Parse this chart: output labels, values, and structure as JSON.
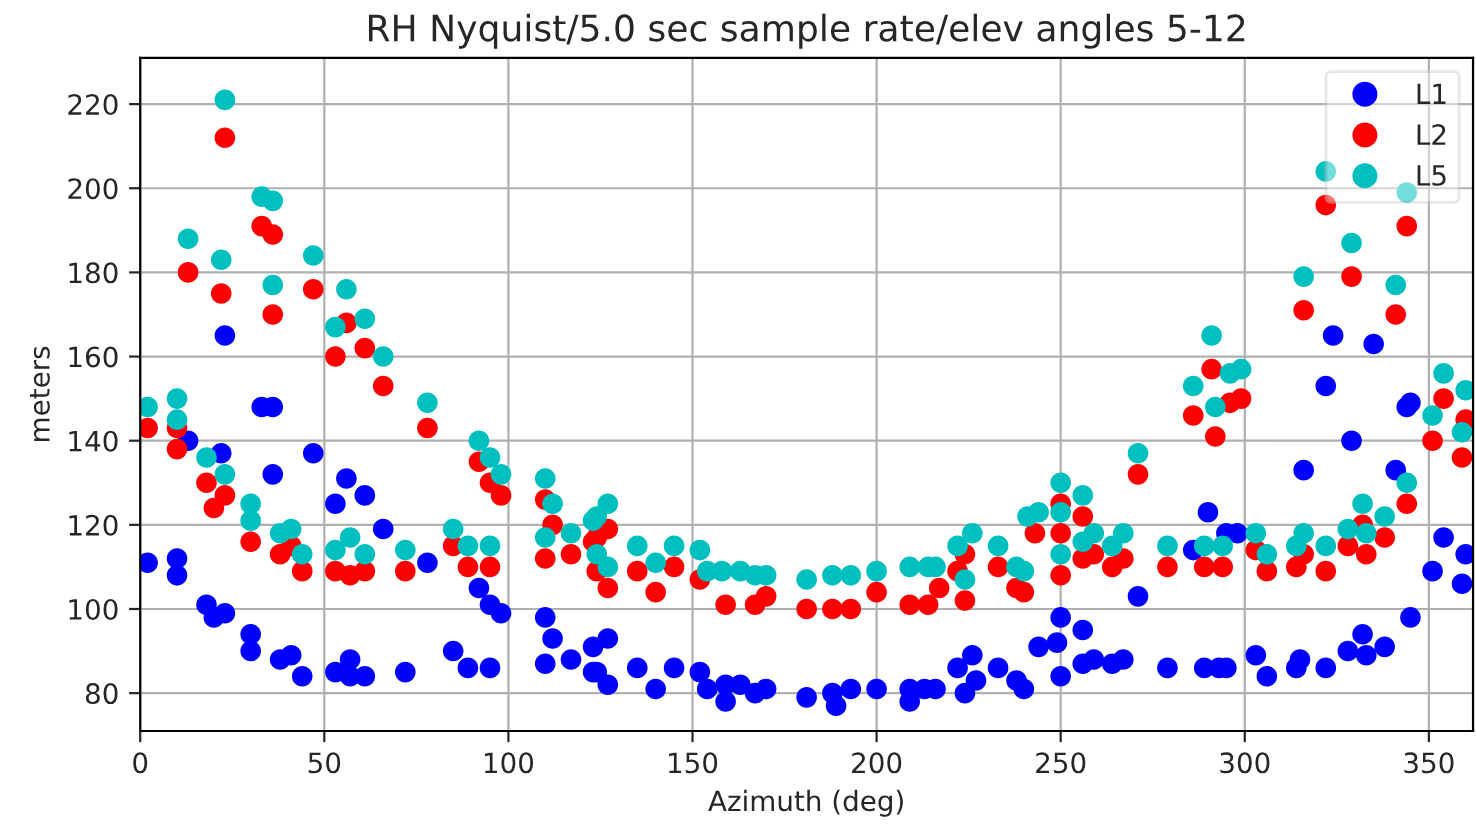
{
  "chart_data": {
    "type": "scatter",
    "title": "RH Nyquist/5.0 sec sample rate/elev angles 5-12",
    "xlabel": "Azimuth (deg)",
    "ylabel": "meters",
    "xlim": [
      0,
      362
    ],
    "ylim": [
      71,
      231
    ],
    "xticks": [
      0,
      50,
      100,
      150,
      200,
      250,
      300,
      350
    ],
    "yticks": [
      80,
      100,
      120,
      140,
      160,
      180,
      200,
      220
    ],
    "grid": true,
    "legend": "top right",
    "marker": "circle",
    "series": [
      {
        "name": "L1",
        "color": "#0000ff",
        "x": [
          2,
          10,
          10,
          13,
          18,
          20,
          22,
          23,
          23,
          30,
          30,
          33,
          36,
          36,
          38,
          41,
          44,
          47,
          53,
          53,
          56,
          57,
          57,
          61,
          61,
          66,
          72,
          78,
          85,
          89,
          92,
          95,
          95,
          98,
          110,
          112,
          110,
          117,
          123,
          123,
          127,
          124,
          127,
          135,
          140,
          145,
          152,
          154,
          159,
          159,
          163,
          167,
          170,
          181,
          188,
          189,
          193,
          200,
          209,
          209,
          213,
          216,
          222,
          226,
          224,
          227,
          233,
          238,
          240,
          244,
          250,
          249,
          250,
          256,
          256,
          259,
          264,
          267,
          271,
          279,
          286,
          290,
          295,
          298,
          289,
          293,
          295,
          303,
          306,
          316,
          315,
          314,
          322,
          324,
          322,
          329,
          328,
          332,
          333,
          338,
          335,
          341,
          344,
          345,
          345,
          354,
          351,
          359,
          360
        ],
        "values": [
          111,
          112,
          108,
          140,
          101,
          98,
          137,
          165,
          99,
          94,
          90,
          148,
          148,
          132,
          88,
          89,
          84,
          137,
          125,
          85,
          131,
          88,
          84,
          127,
          84,
          119,
          85,
          111,
          90,
          86,
          105,
          101,
          86,
          99,
          98,
          93,
          87,
          88,
          91,
          85,
          93,
          85,
          82,
          86,
          81,
          86,
          85,
          81,
          82,
          78,
          82,
          80,
          81,
          79,
          80,
          77,
          81,
          81,
          81,
          78,
          81,
          81,
          86,
          89,
          80,
          83,
          86,
          83,
          81,
          91,
          98,
          92,
          84,
          95,
          87,
          88,
          87,
          88,
          103,
          86,
          114,
          123,
          118,
          118,
          86,
          86,
          86,
          89,
          84,
          133,
          88,
          86,
          153,
          165,
          86,
          140,
          90,
          94,
          89,
          91,
          163,
          133,
          148,
          149,
          98,
          117,
          109,
          106,
          113
        ]
      },
      {
        "name": "L2",
        "color": "#ff0000",
        "x": [
          2,
          10,
          10,
          13,
          18,
          20,
          22,
          23,
          23,
          30,
          33,
          36,
          36,
          38,
          41,
          44,
          47,
          53,
          53,
          56,
          57,
          61,
          61,
          66,
          72,
          78,
          85,
          89,
          92,
          95,
          95,
          98,
          110,
          112,
          110,
          117,
          123,
          124,
          127,
          124,
          127,
          135,
          140,
          145,
          152,
          159,
          167,
          170,
          181,
          188,
          193,
          200,
          209,
          214,
          217,
          222,
          224,
          224,
          233,
          238,
          243,
          240,
          250,
          250,
          250,
          256,
          256,
          259,
          264,
          267,
          271,
          279,
          286,
          291,
          292,
          296,
          299,
          289,
          294,
          303,
          306,
          316,
          316,
          314,
          322,
          322,
          329,
          332,
          328,
          333,
          338,
          341,
          344,
          344,
          354,
          351,
          359,
          360
        ],
        "values": [
          143,
          143,
          138,
          180,
          130,
          124,
          175,
          212,
          127,
          116,
          191,
          189,
          170,
          113,
          115,
          109,
          176,
          160,
          109,
          168,
          108,
          162,
          109,
          153,
          109,
          143,
          115,
          110,
          135,
          130,
          110,
          127,
          126,
          120,
          112,
          113,
          116,
          117,
          119,
          109,
          105,
          109,
          104,
          110,
          107,
          101,
          101,
          103,
          100,
          100,
          100,
          104,
          101,
          101,
          105,
          109,
          113,
          102,
          110,
          105,
          118,
          104,
          125,
          118,
          108,
          122,
          112,
          113,
          110,
          112,
          132,
          110,
          146,
          157,
          141,
          149,
          150,
          110,
          110,
          114,
          109,
          171,
          113,
          110,
          196,
          109,
          179,
          120,
          115,
          113,
          117,
          170,
          191,
          125,
          150,
          140,
          136,
          145
        ]
      },
      {
        "name": "L5",
        "color": "#00bfbf",
        "x": [
          2,
          10,
          10,
          13,
          18,
          22,
          23,
          23,
          30,
          30,
          33,
          36,
          36,
          38,
          41,
          44,
          47,
          53,
          53,
          56,
          57,
          61,
          61,
          66,
          72,
          78,
          85,
          89,
          92,
          95,
          95,
          98,
          110,
          112,
          110,
          117,
          123,
          124,
          127,
          124,
          127,
          135,
          140,
          145,
          152,
          154,
          158,
          163,
          167,
          170,
          181,
          188,
          193,
          200,
          209,
          214,
          216,
          222,
          226,
          224,
          233,
          238,
          240,
          241,
          244,
          250,
          250,
          250,
          256,
          256,
          259,
          264,
          267,
          271,
          279,
          286,
          291,
          292,
          296,
          299,
          289,
          294,
          303,
          306,
          316,
          316,
          314,
          322,
          322,
          329,
          332,
          328,
          333,
          338,
          341,
          344,
          344,
          354,
          351,
          359,
          360
        ],
        "values": [
          148,
          150,
          145,
          188,
          136,
          183,
          221,
          132,
          125,
          121,
          198,
          197,
          177,
          118,
          119,
          113,
          184,
          167,
          114,
          176,
          117,
          169,
          113,
          160,
          114,
          149,
          119,
          115,
          140,
          136,
          115,
          132,
          131,
          125,
          117,
          118,
          121,
          122,
          125,
          113,
          110,
          115,
          111,
          115,
          114,
          109,
          109,
          109,
          108,
          108,
          107,
          108,
          108,
          109,
          110,
          110,
          110,
          115,
          118,
          107,
          115,
          110,
          109,
          122,
          123,
          130,
          123,
          113,
          127,
          116,
          118,
          115,
          118,
          137,
          115,
          153,
          165,
          148,
          156,
          157,
          115,
          115,
          118,
          113,
          179,
          118,
          115,
          204,
          115,
          187,
          125,
          119,
          118,
          122,
          177,
          199,
          130,
          156,
          146,
          142,
          152
        ]
      }
    ]
  }
}
